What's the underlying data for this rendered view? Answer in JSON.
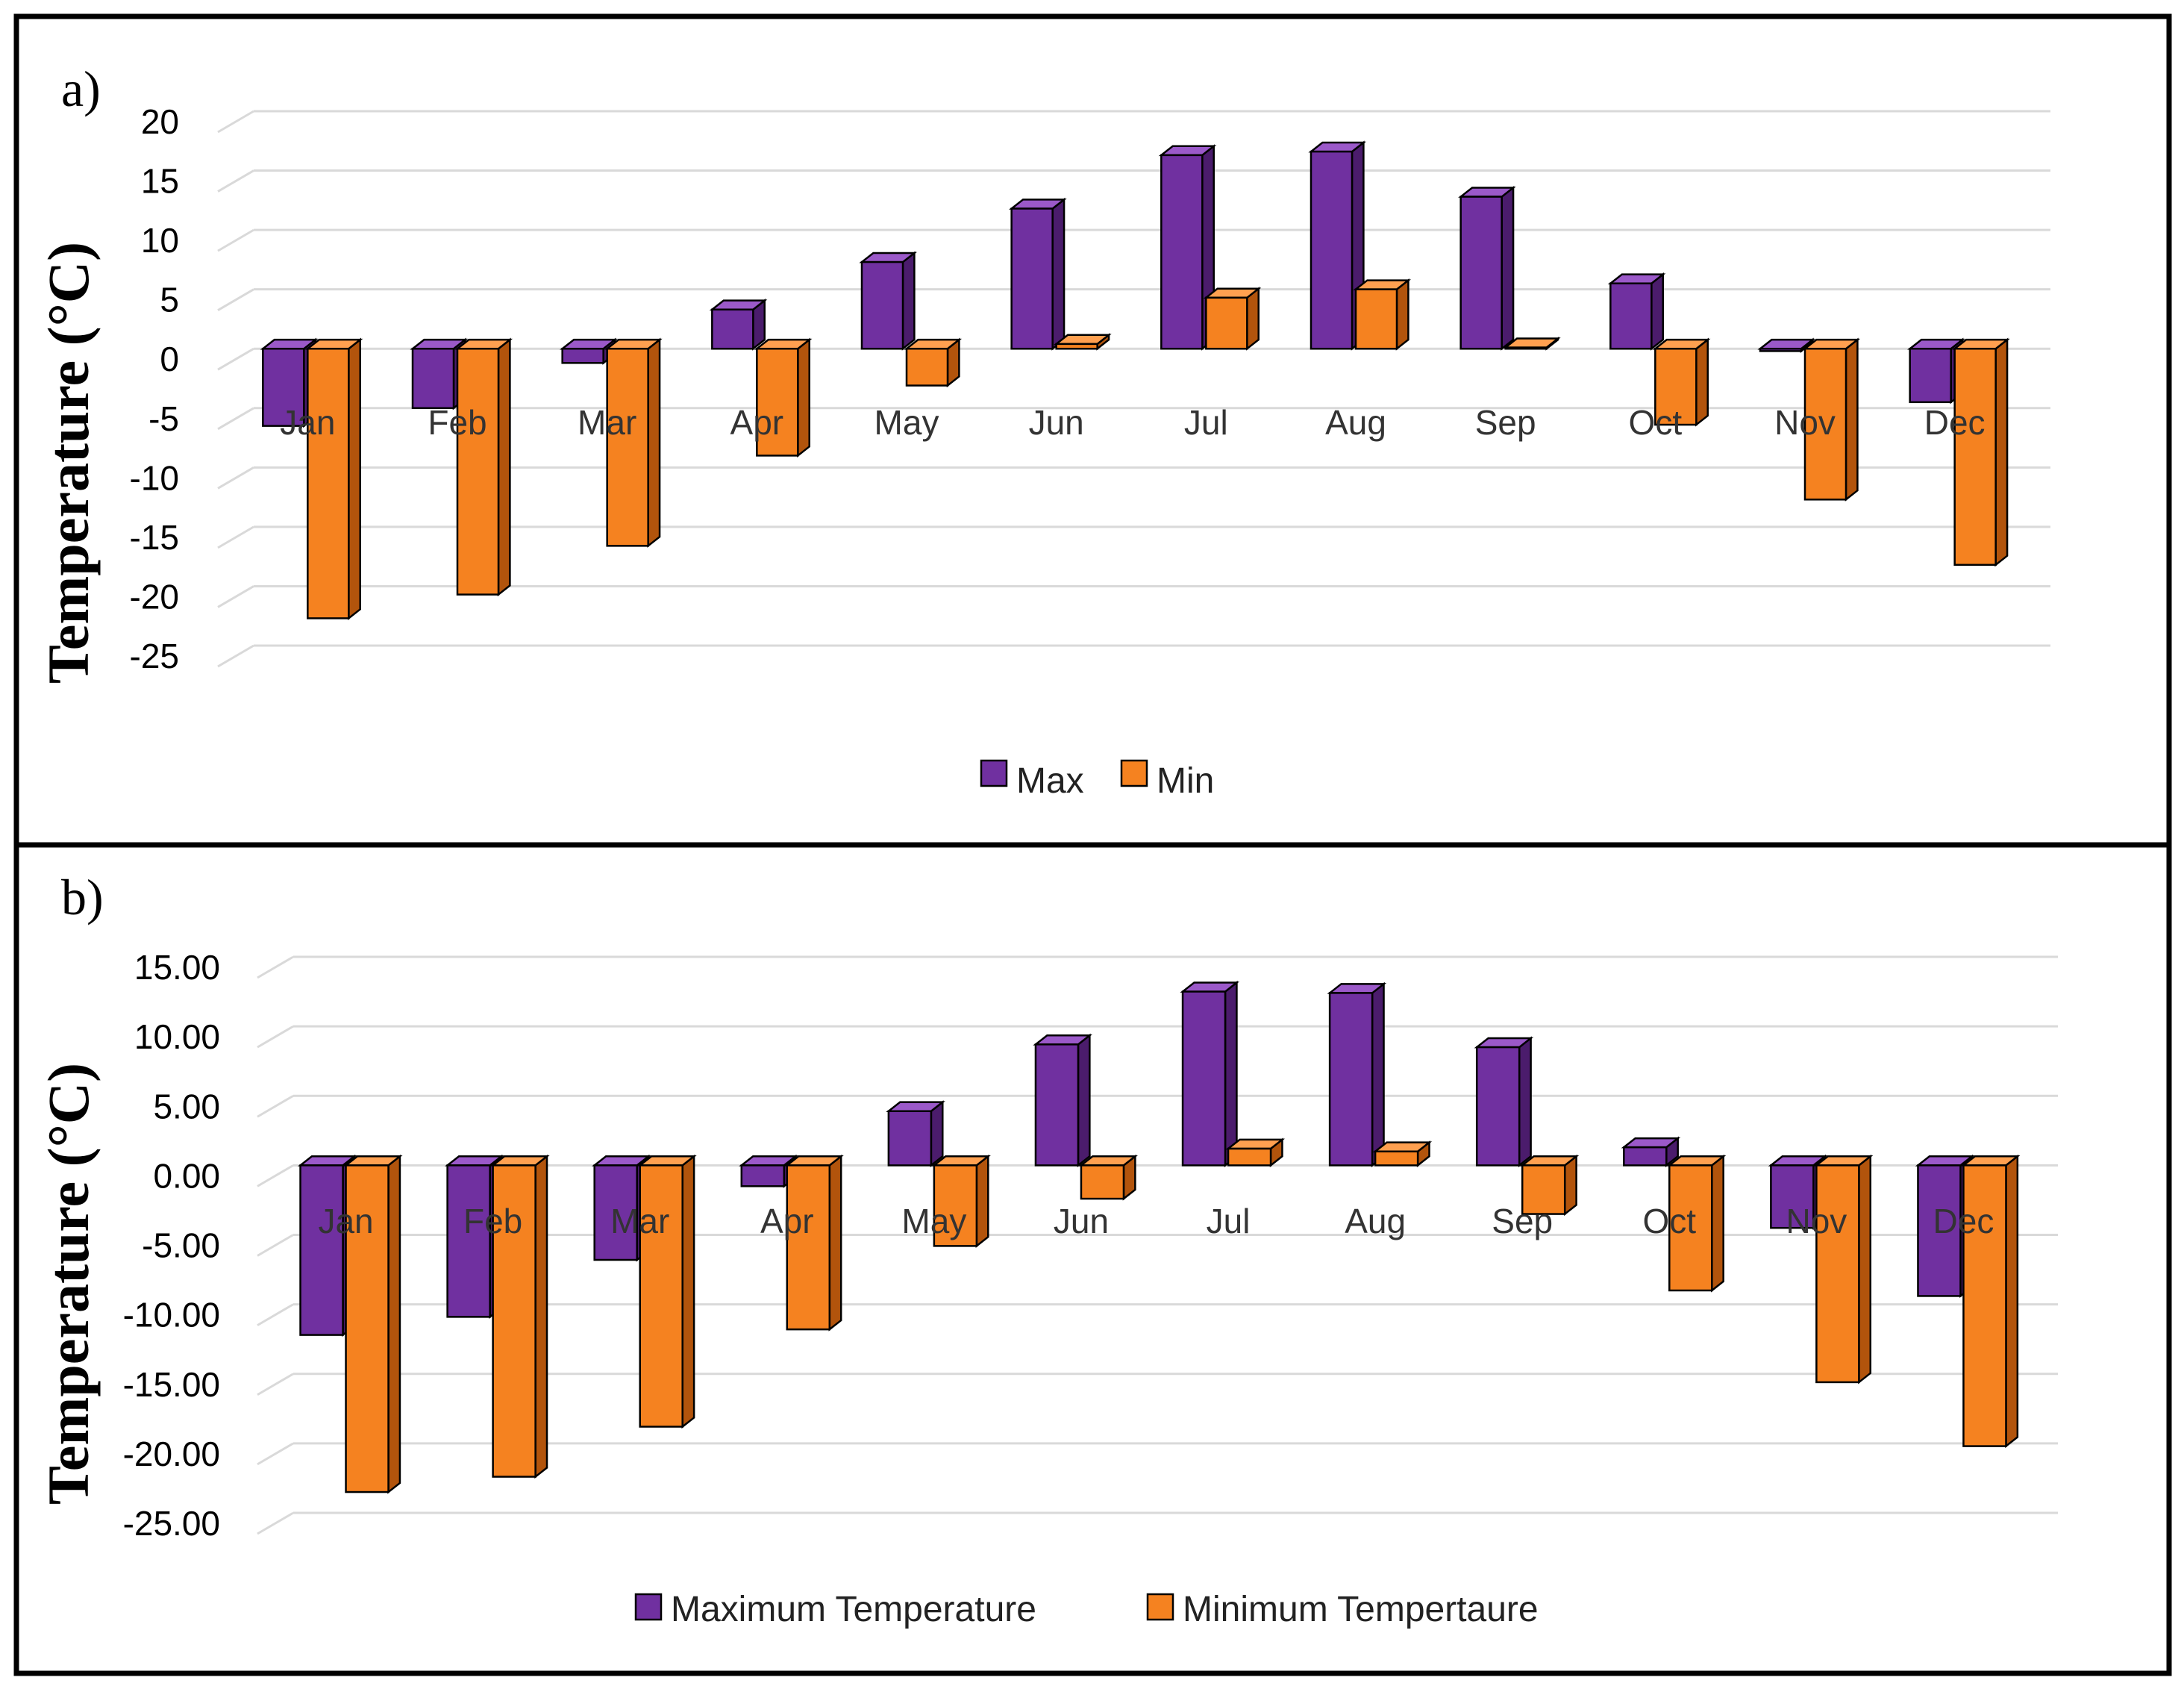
{
  "colors": {
    "max_front": "#7030a0",
    "max_side": "#4b1c6c",
    "max_top": "#9b59c9",
    "min_front": "#f58220",
    "min_side": "#b2540c",
    "min_top": "#ffa050"
  },
  "chart_data": [
    {
      "type": "bar",
      "panel_label": "a)",
      "ylabel": "Temperature (°C)",
      "ylim": [
        -25,
        20
      ],
      "yticks": [
        20,
        15,
        10,
        5,
        0,
        -5,
        -10,
        -15,
        -20,
        -25
      ],
      "ytick_labels": [
        "20",
        "15",
        "10",
        "5",
        "0",
        "-5",
        "-10",
        "-15",
        "-20",
        "-25"
      ],
      "categories": [
        "Jan",
        "Feb",
        "Mar",
        "Apr",
        "May",
        "Jun",
        "Jul",
        "Aug",
        "Sep",
        "Oct",
        "Nov",
        "Dec"
      ],
      "series": [
        {
          "name": "Max",
          "values": [
            -6.5,
            -5.0,
            -1.2,
            3.3,
            7.3,
            11.8,
            16.3,
            16.6,
            12.8,
            5.5,
            -0.2,
            -4.5
          ]
        },
        {
          "name": "Min",
          "values": [
            -22.7,
            -20.7,
            -16.6,
            -9.0,
            -3.1,
            0.4,
            4.3,
            5.0,
            0.1,
            -6.4,
            -12.7,
            -18.2
          ]
        }
      ],
      "legend": [
        "Max",
        "Min"
      ],
      "legend_position": "bottom-center"
    },
    {
      "type": "bar",
      "panel_label": "b)",
      "ylabel": "Temperature (°C)",
      "ylim": [
        -25,
        15
      ],
      "yticks": [
        15,
        10,
        5,
        0,
        -5,
        -10,
        -15,
        -20,
        -25
      ],
      "ytick_labels": [
        "15.00",
        "10.00",
        "5.00",
        "0.00",
        "-5.00",
        "-10.00",
        "-15.00",
        "-20.00",
        "-25.00"
      ],
      "categories": [
        "Jan",
        "Feb",
        "Mar",
        "Apr",
        "May",
        "Jun",
        "Jul",
        "Aug",
        "Sep",
        "Oct",
        "Nov",
        "Dec"
      ],
      "series": [
        {
          "name": "Maximum Temperature",
          "values": [
            -12.2,
            -10.9,
            -6.8,
            -1.5,
            3.9,
            8.7,
            12.5,
            12.4,
            8.5,
            1.3,
            -4.5,
            -9.4
          ]
        },
        {
          "name": "Minimum Tempertaure",
          "values": [
            -23.5,
            -22.4,
            -18.8,
            -11.8,
            -5.8,
            -2.4,
            1.2,
            1.0,
            -3.5,
            -9.0,
            -15.6,
            -20.2
          ]
        }
      ],
      "legend": [
        "Maximum Temperature",
        "Minimum Tempertaure"
      ],
      "legend_position": "bottom-center"
    }
  ]
}
